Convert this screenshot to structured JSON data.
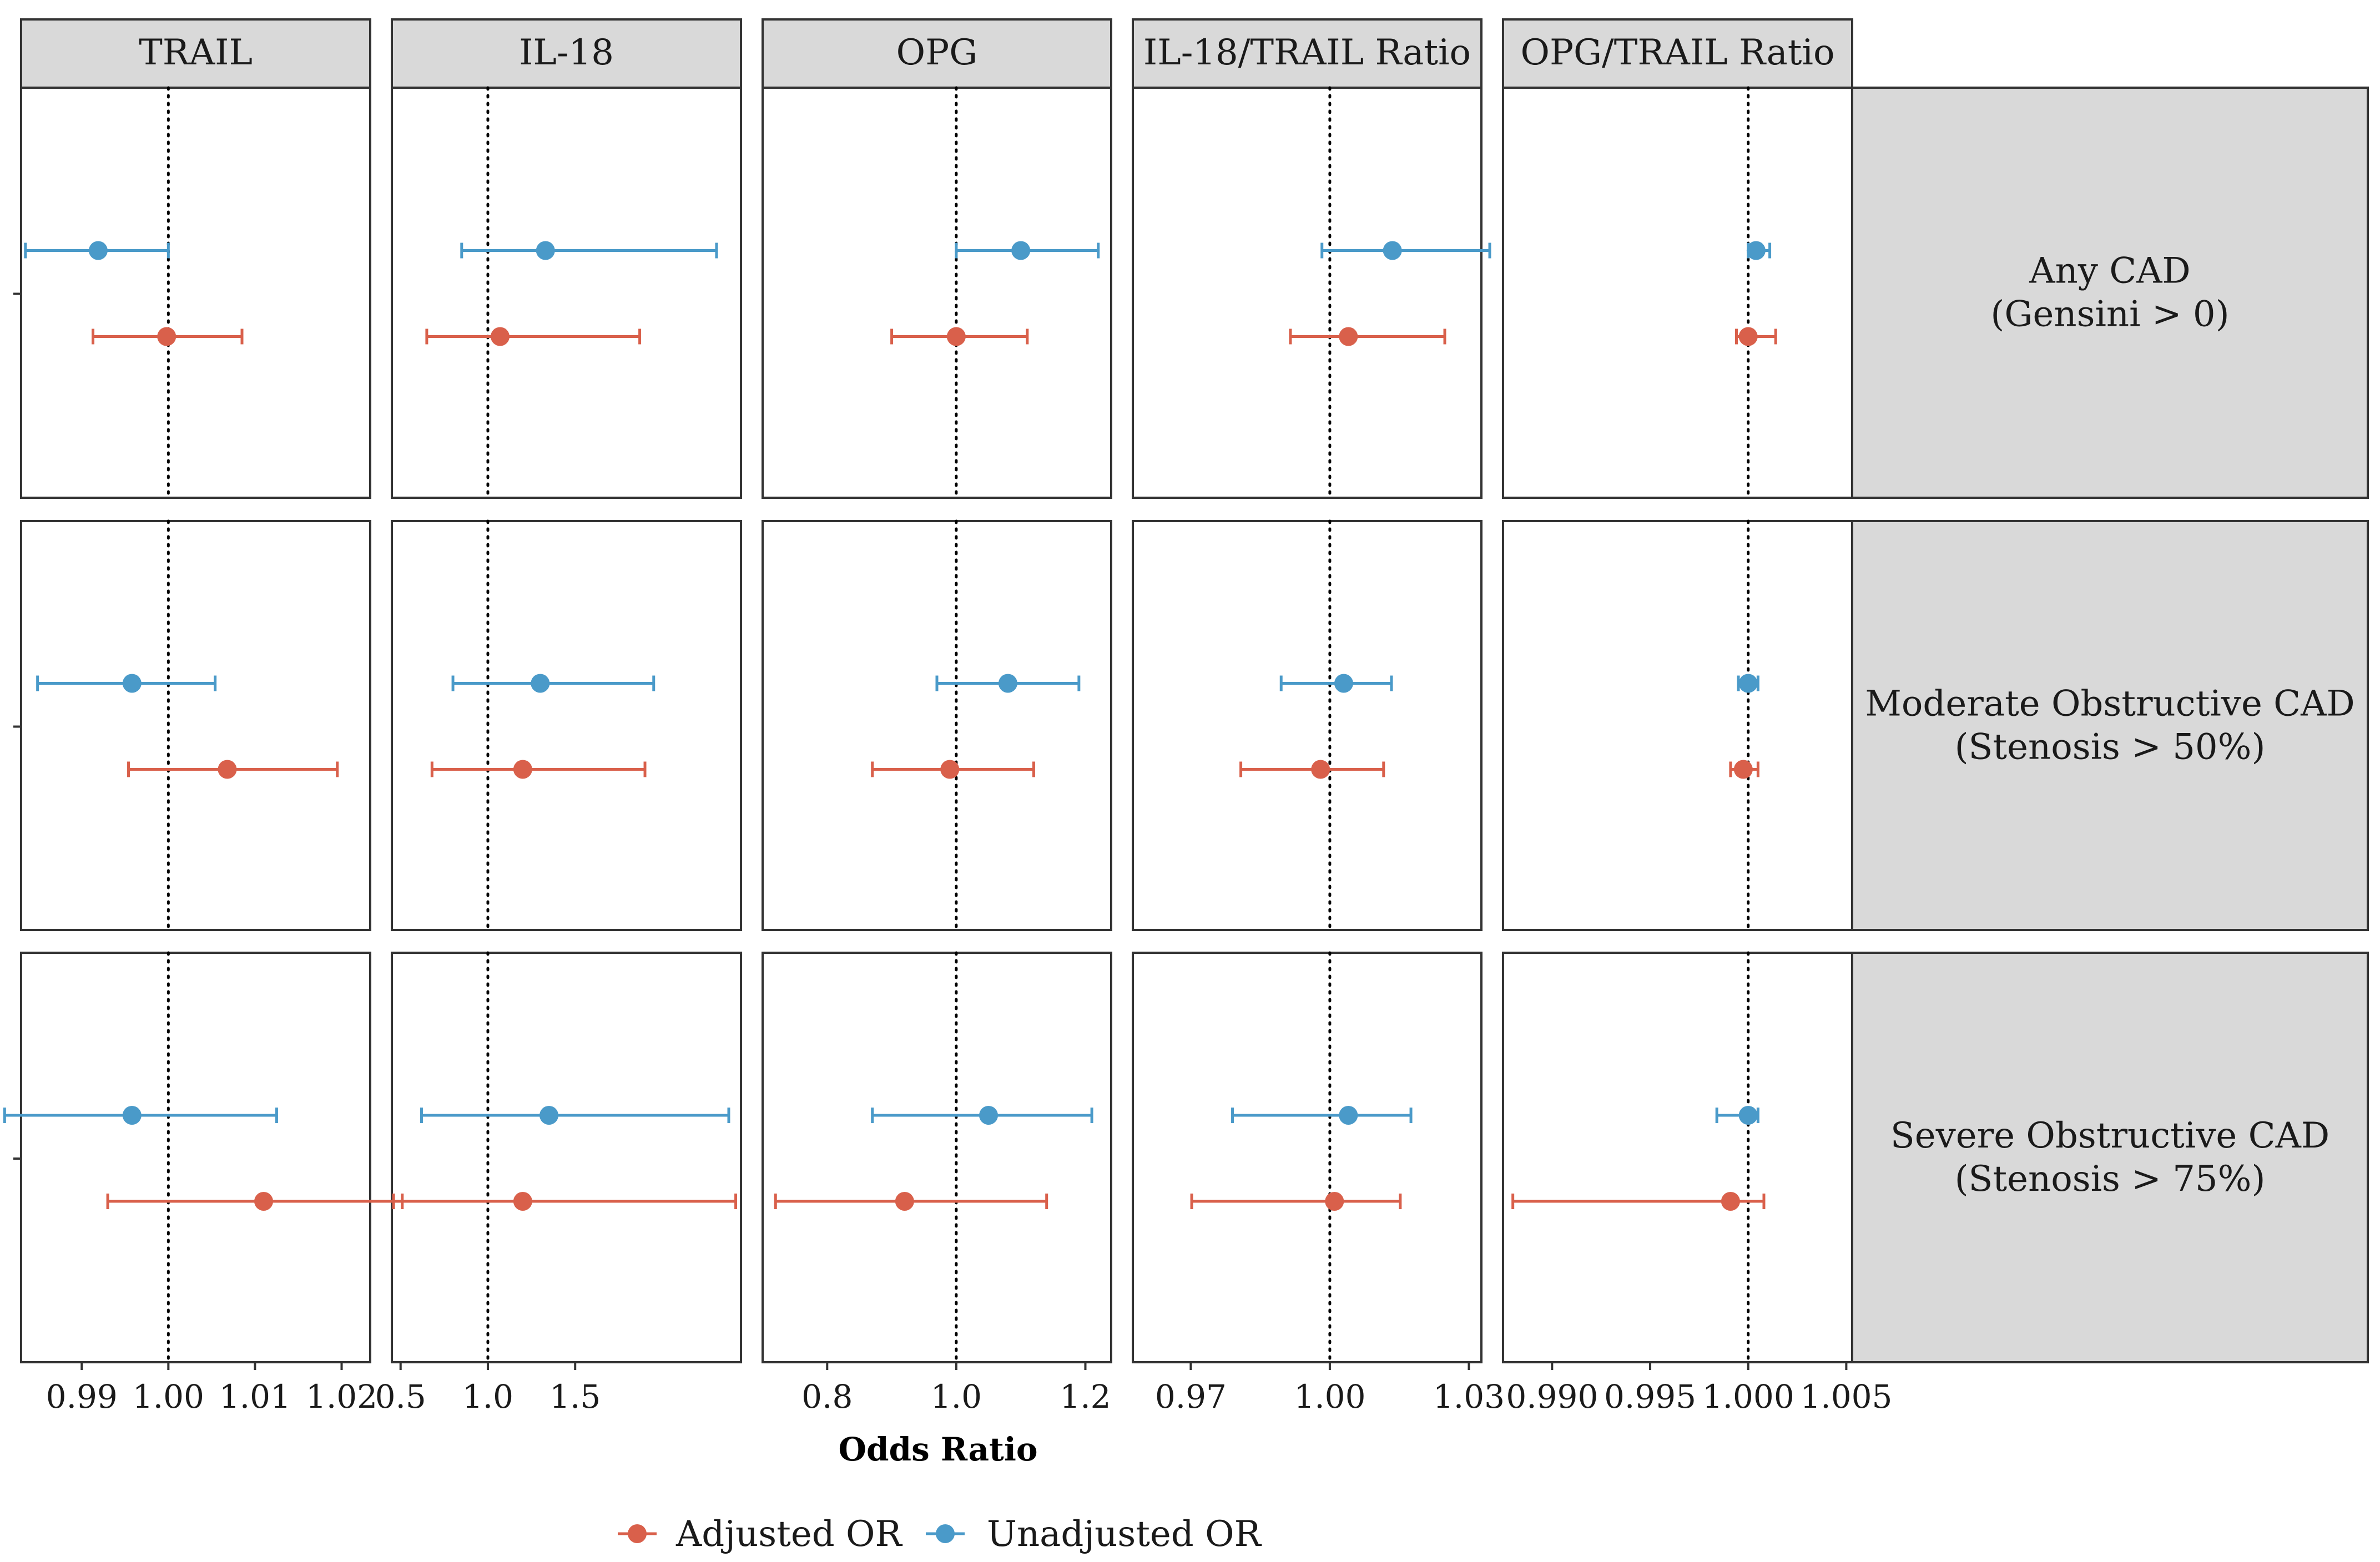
{
  "chart_data": {
    "type": "forest",
    "xlabel": "Odds Ratio",
    "legend_position": "bottom",
    "reference_line": 1.0,
    "panels": [
      {
        "label": "TRAIL",
        "xlim": [
          0.983,
          1.0233
        ],
        "ticks": [
          0.99,
          1.0,
          1.01,
          1.02
        ],
        "tick_labels": [
          "0.99",
          "1.00",
          "1.01",
          "1.02"
        ]
      },
      {
        "label": "IL-18",
        "xlim": [
          0.45,
          2.45
        ],
        "ticks": [
          0.5,
          1.0,
          1.5
        ],
        "tick_labels": [
          "0.5",
          "1.0",
          "1.5"
        ]
      },
      {
        "label": "OPG",
        "xlim": [
          0.7,
          1.24
        ],
        "ticks": [
          0.8,
          1.0,
          1.2
        ],
        "tick_labels": [
          "0.8",
          "1.0",
          "1.2"
        ]
      },
      {
        "label": "IL-18/TRAIL Ratio",
        "xlim": [
          0.9575,
          1.0327
        ],
        "ticks": [
          0.97,
          1.0,
          1.03
        ],
        "tick_labels": [
          "0.97",
          "1.00",
          "1.03"
        ]
      },
      {
        "label": "OPG/TRAIL Ratio",
        "xlim": [
          0.9875,
          1.0053
        ],
        "ticks": [
          0.99,
          0.995,
          1.0,
          1.005
        ],
        "tick_labels": [
          "0.990",
          "0.995",
          "1.000",
          "1.005"
        ]
      }
    ],
    "rows": [
      {
        "label_line1": "Any CAD",
        "label_line2": "(Gensini > 0)"
      },
      {
        "label_line1": "Moderate Obstructive CAD",
        "label_line2": "(Stenosis > 50%)"
      },
      {
        "label_line1": "Severe Obstructive CAD",
        "label_line2": "(Stenosis > 75%)"
      }
    ],
    "series": [
      {
        "name": "Adjusted OR",
        "color": "#D9604B",
        "data": [
          [
            {
              "or": 0.9998,
              "lo": 0.9913,
              "hi": 1.0085
            },
            {
              "or": 1.07,
              "lo": 0.65,
              "hi": 1.87
            },
            {
              "or": 1.0,
              "lo": 0.9,
              "hi": 1.11
            },
            {
              "or": 1.004,
              "lo": 0.9915,
              "hi": 1.0248
            },
            {
              "or": 1.0,
              "lo": 0.9994,
              "hi": 1.0014
            }
          ],
          [
            {
              "or": 1.0068,
              "lo": 0.9954,
              "hi": 1.0195
            },
            {
              "or": 1.2,
              "lo": 0.68,
              "hi": 1.9
            },
            {
              "or": 0.99,
              "lo": 0.87,
              "hi": 1.12
            },
            {
              "or": 0.998,
              "lo": 0.9808,
              "hi": 1.0116
            },
            {
              "or": 0.99975,
              "lo": 0.9991,
              "hi": 1.0005
            }
          ],
          [
            {
              "or": 1.011,
              "lo": 0.993,
              "hi": 1.027
            },
            {
              "or": 1.2,
              "lo": 0.46,
              "hi": 2.42
            },
            {
              "or": 0.92,
              "lo": 0.72,
              "hi": 1.14
            },
            {
              "or": 1.001,
              "lo": 0.9702,
              "hi": 1.0152
            },
            {
              "or": 0.9991,
              "lo": 0.988,
              "hi": 1.0008
            }
          ]
        ]
      },
      {
        "name": "Unadjusted OR",
        "color": "#4A9AC9",
        "data": [
          [
            {
              "or": 0.9919,
              "lo": 0.9835,
              "hi": 1.0
            },
            {
              "or": 1.33,
              "lo": 0.85,
              "hi": 2.31
            },
            {
              "or": 1.1,
              "lo": 1.0,
              "hi": 1.22
            },
            {
              "or": 1.0135,
              "lo": 0.9983,
              "hi": 1.0345
            },
            {
              "or": 1.0004,
              "lo": 1.0,
              "hi": 1.0011
            }
          ],
          [
            {
              "or": 0.9958,
              "lo": 0.9849,
              "hi": 1.0054
            },
            {
              "or": 1.3,
              "lo": 0.8,
              "hi": 1.95
            },
            {
              "or": 1.08,
              "lo": 0.97,
              "hi": 1.19
            },
            {
              "or": 1.003,
              "lo": 0.9895,
              "hi": 1.0133
            },
            {
              "or": 1.0,
              "lo": 0.9995,
              "hi": 1.0005
            }
          ],
          [
            {
              "or": 0.9958,
              "lo": 0.9811,
              "hi": 1.0125
            },
            {
              "or": 1.35,
              "lo": 0.62,
              "hi": 2.38
            },
            {
              "or": 1.05,
              "lo": 0.87,
              "hi": 1.21
            },
            {
              "or": 1.004,
              "lo": 0.979,
              "hi": 1.0175
            },
            {
              "or": 1.0,
              "lo": 0.9984,
              "hi": 1.0005
            }
          ]
        ]
      }
    ]
  }
}
